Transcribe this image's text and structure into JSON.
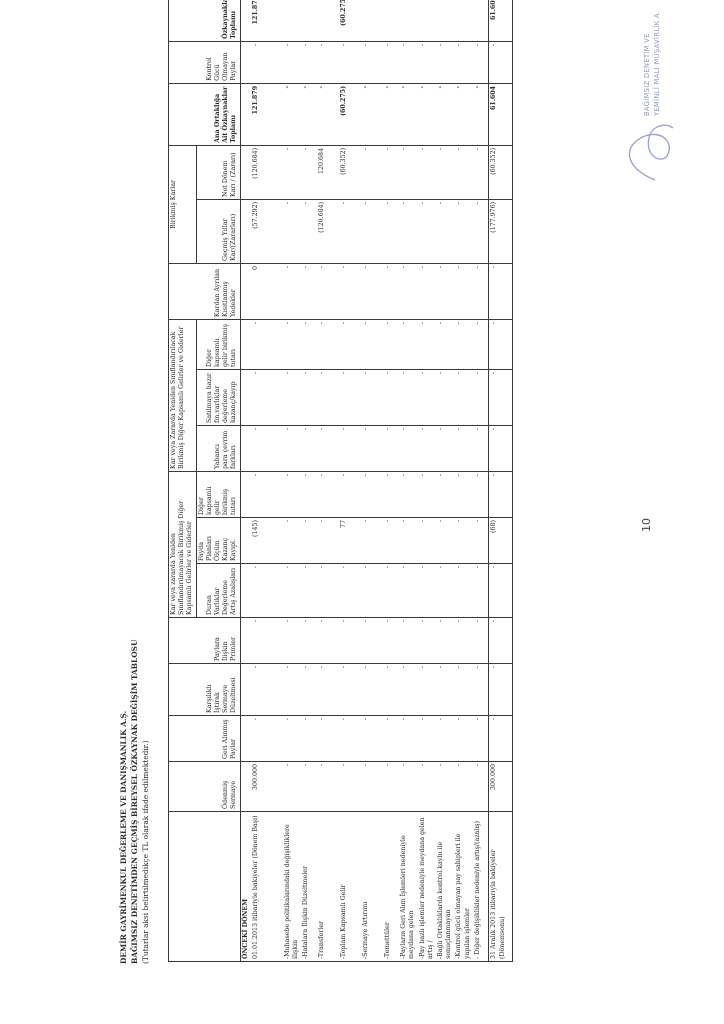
{
  "header": {
    "company": "DEMİR GAYRİMENKUL DEĞERLEME VE DANIŞMANLIK A.Ş.",
    "title": "BAĞIMSIZ DENETİMDEN GEÇMİŞ BİREYSEL ÖZKAYNAK DEĞİŞİM TABLOSU",
    "note": "(Tutarlar aksi belirtilmedikçe TL olarak ifade edilmektedir.)"
  },
  "table": {
    "group1": "Kar veya zararda Yeniden Sınıflandırılmayacak Birikmiş Diğer Kapsamlı Gelirler ve Giderler",
    "group2": "Kar veya Zararda Yeniden Sınıflandırılacak Birikmiş Diğer Kapsamlı Gelirler ve Giderler",
    "group3": "Birikmiş Karlar",
    "columns": [
      "Ödenmiş Sermaye",
      "Geri Alınmış Paylar",
      "Karşılıklı İştirak Sermaye Düzeltmesi",
      "Paylara İlişkin Primler",
      "Duran Varlıklar Değerleme Artış Azalışları",
      "Fayda Planları Ölçüm Kazanç Kayıpl.",
      "Diğer kapsamlı gelir birikmiş tutarı",
      "Yabancı para çevrim farkları",
      "Satılmaya hazır fin.varlıklar değerleme kazanç/kayıp",
      "Diğer kapsamlı gelir birikmiş tutarı",
      "Kardan Ayrılan Kısıtlanmış Yedekler",
      "Geçmiş Yıllar Kar/(Zararları)",
      "Net Dönem Karı / (Zararı)",
      "Ana Ortaklığa Ait Özkaynaklar Toplamı",
      "Kontrol Gücü Olmayan Paylar",
      "Özkaynaklar Toplamı"
    ],
    "section": "ÖNCEKİ DÖNEM",
    "rows": [
      {
        "label": "01.01.2013 itibariyle bakiyeler (Dönem Başı)",
        "values": [
          "300.000",
          "-",
          "-",
          "-",
          "-",
          "(145)",
          "-",
          "-",
          "-",
          "-",
          "0",
          "(57.292)",
          "(120.684)",
          "121.879",
          "-",
          "121.879"
        ]
      },
      {
        "label": "-Muhasebe politikalarındaki değişikliklere ilişkin",
        "values": [
          "-",
          "-",
          "-",
          "-",
          "-",
          "-",
          "-",
          "-",
          "-",
          "-",
          "-",
          "-",
          "-",
          "-",
          "-",
          "-"
        ]
      },
      {
        "label": "-Hatalara İlişkin Düzeltmeler",
        "values": [
          "-",
          "-",
          "-",
          "-",
          "-",
          "-",
          "-",
          "-",
          "-",
          "-",
          "-",
          "-",
          "-",
          "-",
          "-",
          "-"
        ]
      },
      {
        "label": "-Transferler",
        "values": [
          "-",
          "-",
          "-",
          "-",
          "-",
          "-",
          "-",
          "-",
          "-",
          "-",
          "-",
          "(120.684)",
          "120.684",
          "-",
          "-",
          "-"
        ]
      },
      {
        "label": "-Toplam Kapsamlı Gelir",
        "values": [
          "-",
          "-",
          "-",
          "-",
          "-",
          "77",
          "-",
          "-",
          "-",
          "-",
          "-",
          "-",
          "(60.352)",
          "(60.275)",
          "-",
          "(60.275)"
        ]
      },
      {
        "label": "-Sermaye Artırımı",
        "values": [
          "-",
          "-",
          "-",
          "-",
          "-",
          "-",
          "-",
          "-",
          "-",
          "-",
          "-",
          "-",
          "-",
          "-",
          "-",
          "-"
        ]
      },
      {
        "label": "-Temettüler",
        "values": [
          "-",
          "-",
          "-",
          "-",
          "-",
          "-",
          "-",
          "-",
          "-",
          "-",
          "-",
          "-",
          "-",
          "-",
          "-",
          "-"
        ]
      },
      {
        "label": "-Payların Geri Alım İşlemleri nedeniyle meydana gelen",
        "values": [
          "-",
          "-",
          "-",
          "-",
          "-",
          "-",
          "-",
          "-",
          "-",
          "-",
          "-",
          "-",
          "-",
          "-",
          "-",
          "-"
        ]
      },
      {
        "label": "-Pay bazlı işlemler nedeniyle meydana gelen artış /",
        "values": [
          "-",
          "-",
          "-",
          "-",
          "-",
          "-",
          "-",
          "-",
          "-",
          "-",
          "-",
          "-",
          "-",
          "-",
          "-",
          "-"
        ]
      },
      {
        "label": "-Bağlı Ortaklıklarda kontrol kaybı ile sonuçlanmayan",
        "values": [
          "-",
          "-",
          "-",
          "-",
          "-",
          "-",
          "-",
          "-",
          "-",
          "-",
          "-",
          "-",
          "-",
          "-",
          "-",
          "-"
        ]
      },
      {
        "label": "-Kontrol gücü olmayan pay sahipleri ile yapılan işlemler",
        "values": [
          "-",
          "-",
          "-",
          "-",
          "-",
          "-",
          "-",
          "-",
          "-",
          "-",
          "-",
          "-",
          "-",
          "-",
          "-",
          "-"
        ]
      },
      {
        "label": "- Diğer değişiklikler nedeniyle artış/(azalış)",
        "values": [
          "-",
          "-",
          "-",
          "-",
          "-",
          "-",
          "-",
          "-",
          "-",
          "-",
          "-",
          "-",
          "-",
          "-",
          "-",
          "-"
        ]
      },
      {
        "label": "31 Aralık 2013 itibarıyla bakiyeler (Dönemsonu)",
        "values": [
          "300.000",
          "-",
          "-",
          "-",
          "-",
          "(68)",
          "-",
          "-",
          "-",
          "-",
          "-",
          "(177.976)",
          "(60.352)",
          "61.604",
          "-",
          "61.604"
        ]
      }
    ]
  },
  "page_number": "10",
  "stamp": {
    "line1": "BAĞIMSIZ DENETİM VE",
    "line2": "YEMİNLİ MALİ MÜŞAVİRLİK A.Ş."
  }
}
